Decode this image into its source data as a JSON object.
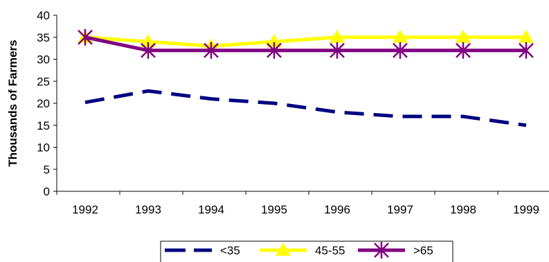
{
  "chart_data": {
    "type": "line",
    "title": "",
    "xlabel": "",
    "ylabel": "Thousands of Farmers",
    "categories": [
      "1992",
      "1993",
      "1994",
      "1995",
      "1996",
      "1997",
      "1998",
      "1999"
    ],
    "ylim": [
      0,
      40
    ],
    "yticks": [
      0,
      5,
      10,
      15,
      20,
      25,
      30,
      35,
      40
    ],
    "grid": false,
    "legend_position": "bottom",
    "series": [
      {
        "name": "<35",
        "values": [
          20.2,
          22.8,
          21,
          20,
          18,
          17,
          17,
          15
        ],
        "color": "#000080",
        "style": "dashed",
        "marker": "none"
      },
      {
        "name": "45-55",
        "values": [
          35,
          34,
          33,
          34,
          35,
          35,
          35,
          35
        ],
        "color": "#ffff00",
        "style": "solid",
        "marker": "triangle"
      },
      {
        "name": ">65",
        "values": [
          35,
          32,
          32,
          32,
          32,
          32,
          32,
          32
        ],
        "color": "#800080",
        "style": "solid",
        "marker": "star"
      }
    ]
  }
}
